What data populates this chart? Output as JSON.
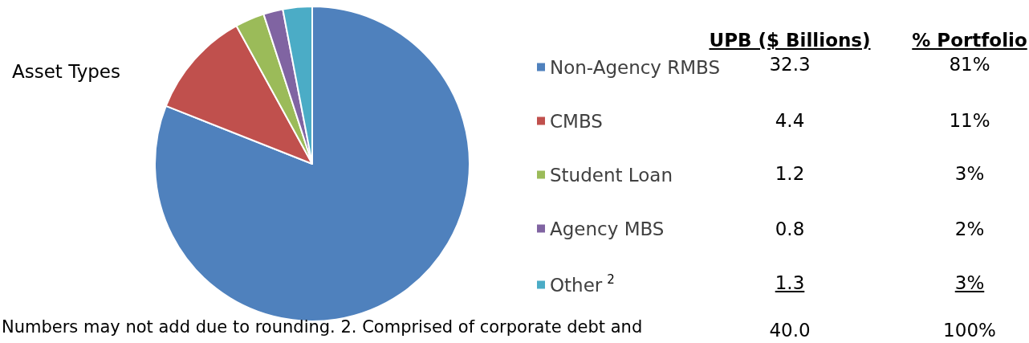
{
  "chart_data": {
    "type": "pie",
    "title": "Asset Types",
    "categories": [
      "Non-Agency RMBS",
      "CMBS",
      "Student Loan",
      "Agency MBS",
      "Other$^{2}$"
    ],
    "values": [
      81,
      11,
      3,
      2,
      3
    ],
    "colors": [
      "#4f81bd",
      "#c0504d",
      "#9bbb59",
      "#8064a2",
      "#4bacc6"
    ],
    "value_labels": [
      "81%",
      "11%",
      "3%",
      "2%",
      "3%"
    ],
    "legend": "right",
    "annotations": [
      "UPB ($ Billions)",
      "% Portfolio",
      "32.3",
      "4.4",
      "1.2",
      "0.8",
      "1.3",
      "40.0",
      "100%",
      "Numbers may not add due to rounding. 2. Comprised of corporate debt and"
    ]
  }
}
